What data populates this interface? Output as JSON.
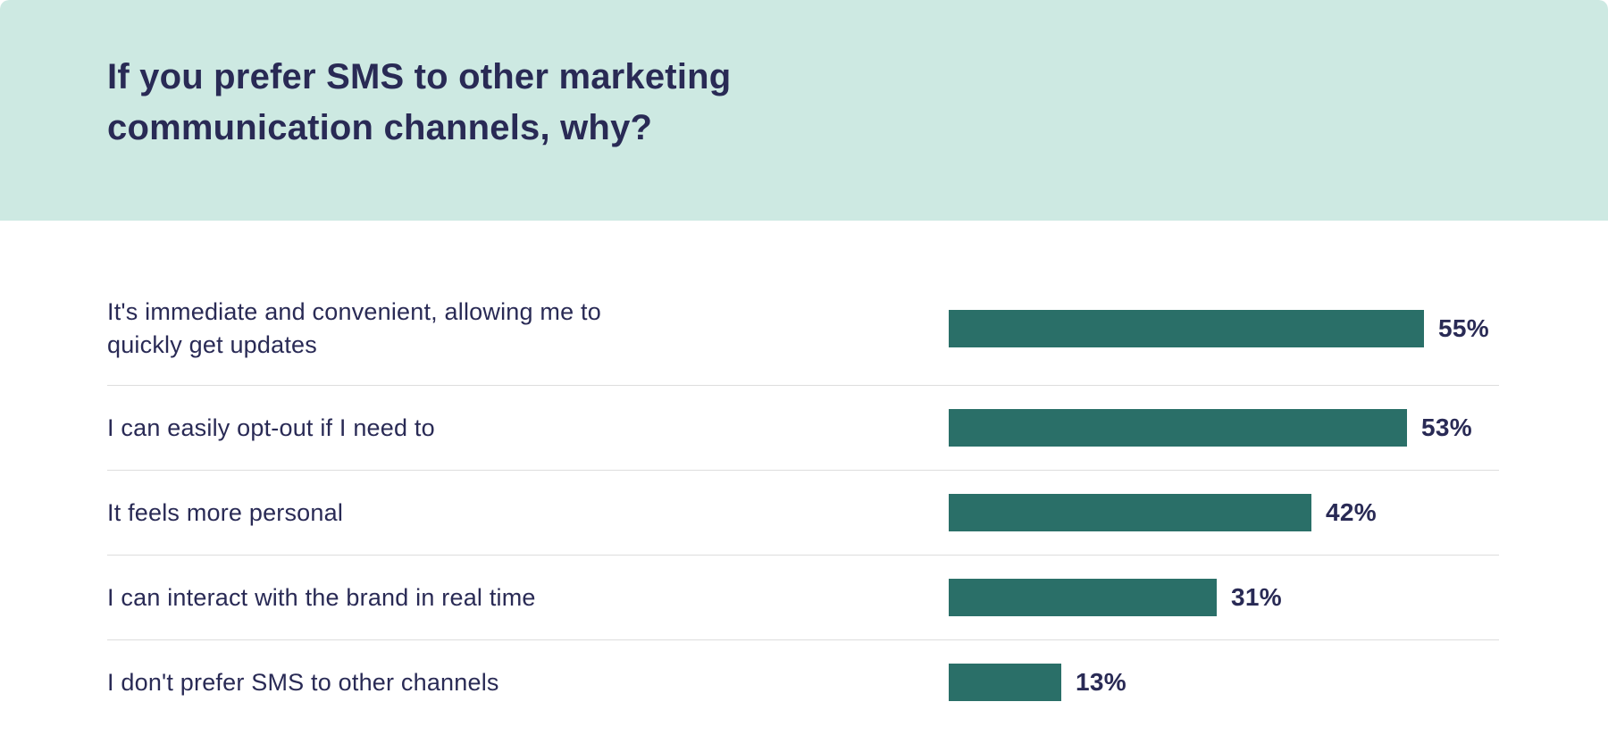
{
  "header": {
    "title": "If you prefer SMS to other marketing communication channels, why?"
  },
  "chart_data": {
    "type": "bar",
    "orientation": "horizontal",
    "title": "If you prefer SMS to other marketing communication channels, why?",
    "categories": [
      "It's immediate and convenient, allowing me to quickly get updates",
      "I can easily opt-out if I need to",
      "It feels more personal",
      "I can interact with the brand in real time",
      "I don't prefer SMS to other channels"
    ],
    "values": [
      55,
      53,
      42,
      31,
      13
    ],
    "value_suffix": "%",
    "xlim": [
      0,
      60
    ],
    "grid": false,
    "legend": false,
    "data_labels_position": "end-of-bar",
    "bar_color": "#2a6f68",
    "text_color": "#292a55",
    "header_background": "#cde9e2",
    "divider_color": "#dddddd",
    "background": "#ffffff"
  }
}
